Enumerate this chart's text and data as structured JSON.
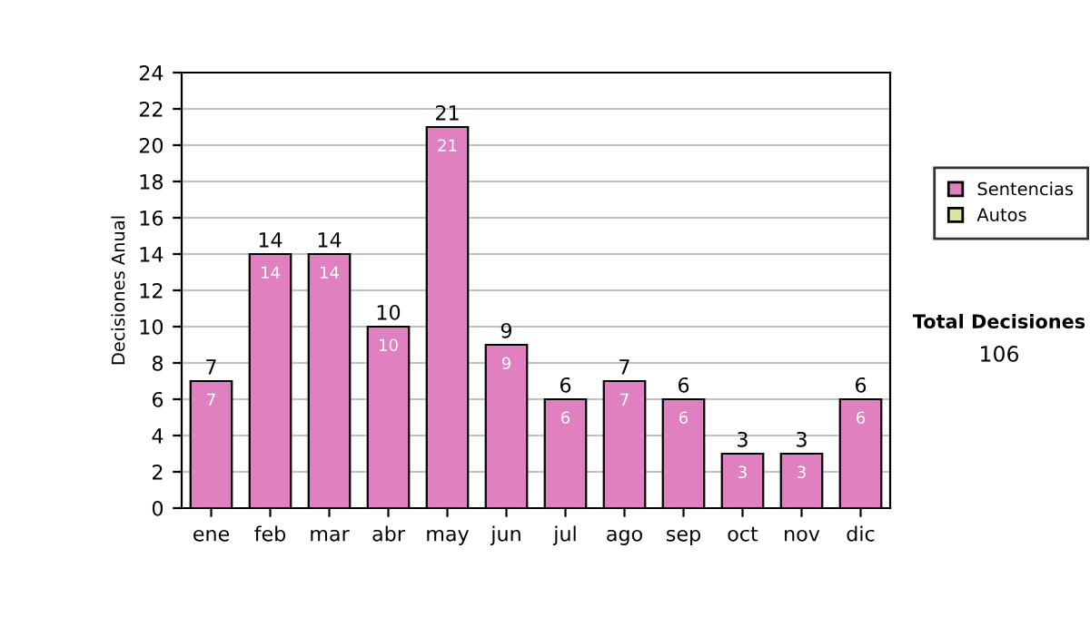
{
  "chart_data": {
    "type": "bar",
    "stacked": true,
    "ylabel": "Decisiones Anual",
    "categories": [
      "ene",
      "feb",
      "mar",
      "abr",
      "may",
      "jun",
      "jul",
      "ago",
      "sep",
      "oct",
      "nov",
      "dic"
    ],
    "series": [
      {
        "name": "Sentencias",
        "color": "#e080c0",
        "values": [
          7,
          14,
          14,
          10,
          21,
          9,
          6,
          7,
          6,
          3,
          3,
          6
        ],
        "value_labels": [
          "7",
          "14",
          "14",
          "10",
          "21",
          "9",
          "6",
          "7",
          "6",
          "3",
          "3",
          "6"
        ]
      },
      {
        "name": "Autos",
        "color": "#d8e8a0",
        "values": [
          null,
          null,
          null,
          null,
          null,
          null,
          null,
          null,
          null,
          null,
          null,
          null
        ]
      }
    ],
    "totals": [
      "7",
      "14",
      "14",
      "10",
      "21",
      "9",
      "6",
      "7",
      "6",
      "3",
      "3",
      "6"
    ],
    "ylim": [
      0,
      24
    ],
    "yticks": [
      0,
      2,
      4,
      6,
      8,
      10,
      12,
      14,
      16,
      18,
      20,
      22,
      24
    ],
    "grid": "y",
    "legend": "right",
    "annotations": [
      "Total Decisiones",
      "106"
    ]
  }
}
